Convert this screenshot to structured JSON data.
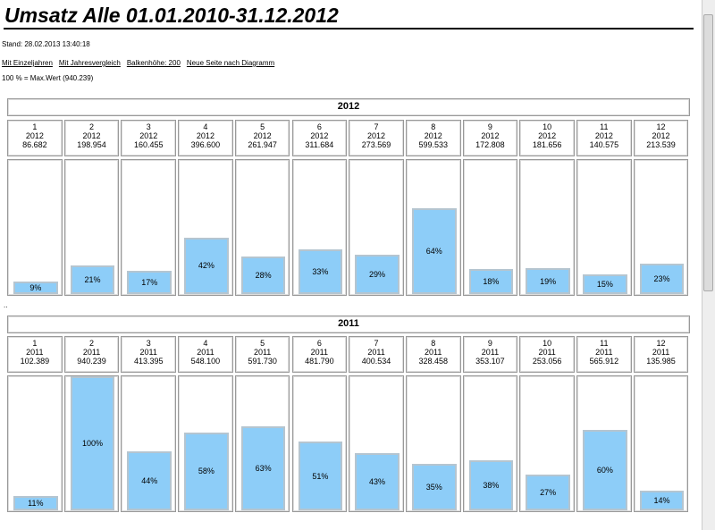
{
  "header": {
    "title": "Umsatz Alle 01.01.2010-31.12.2012",
    "stand": "Stand: 28.02.2013 13:40:18",
    "links": [
      "Mit Einzeljahren",
      "Mit Jahresvergleich",
      "Balkenhöhe: 200",
      "Neue Seite nach Diagramm"
    ],
    "note": "100 % = Max.Wert (940.239)"
  },
  "separator": "..",
  "chart_data": [
    {
      "type": "bar",
      "title": "2012",
      "categories": [
        "1",
        "2",
        "3",
        "4",
        "5",
        "6",
        "7",
        "8",
        "9",
        "10",
        "11",
        "12"
      ],
      "values": [
        86682,
        198954,
        160455,
        396600,
        261947,
        311684,
        273569,
        599533,
        172808,
        181656,
        140575,
        213539
      ],
      "value_labels": [
        "86.682",
        "198.954",
        "160.455",
        "396.600",
        "261.947",
        "311.684",
        "273.569",
        "599.533",
        "172.808",
        "181.656",
        "140.575",
        "213.539"
      ],
      "percent_labels": [
        "9%",
        "21%",
        "17%",
        "42%",
        "28%",
        "33%",
        "29%",
        "64%",
        "18%",
        "19%",
        "15%",
        "23%"
      ],
      "ylim": [
        0,
        940239
      ],
      "color": "#8dcdf8"
    },
    {
      "type": "bar",
      "title": "2011",
      "categories": [
        "1",
        "2",
        "3",
        "4",
        "5",
        "6",
        "7",
        "8",
        "9",
        "10",
        "11",
        "12"
      ],
      "values": [
        102389,
        940239,
        413395,
        548100,
        591730,
        481790,
        400534,
        328458,
        353107,
        253056,
        565912,
        135985
      ],
      "value_labels": [
        "102.389",
        "940.239",
        "413.395",
        "548.100",
        "591.730",
        "481.790",
        "400.534",
        "328.458",
        "353.107",
        "253.056",
        "565.912",
        "135.985"
      ],
      "percent_labels": [
        "11%",
        "100%",
        "44%",
        "58%",
        "63%",
        "51%",
        "43%",
        "35%",
        "38%",
        "27%",
        "60%",
        "14%"
      ],
      "ylim": [
        0,
        940239
      ],
      "color": "#8dcdf8"
    }
  ]
}
